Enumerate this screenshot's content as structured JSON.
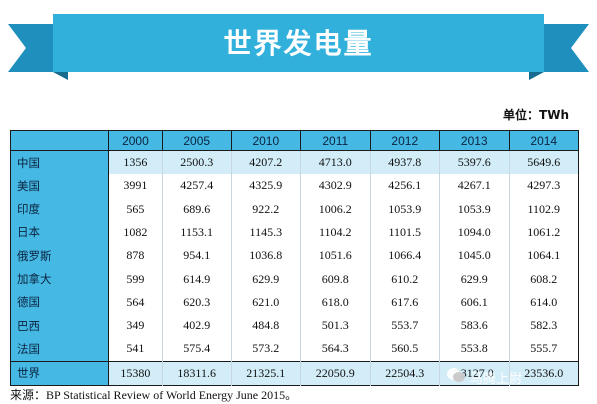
{
  "title": "世界发电量",
  "unit": "单位：TWh",
  "source": "来源：BP Statistical Review of World Energy June 2015。",
  "watermark": "马腾上尉",
  "colors": {
    "header": "#46b8e4",
    "ribbon": "#31b0dc",
    "highlight": "#d2edf8"
  },
  "chart_data": {
    "type": "table",
    "title": "世界发电量",
    "unit": "TWh",
    "columns": [
      "2000",
      "2005",
      "2010",
      "2011",
      "2012",
      "2013",
      "2014"
    ],
    "rows": [
      {
        "name": "中国",
        "values": [
          "1356",
          "2500.3",
          "4207.2",
          "4713.0",
          "4937.8",
          "5397.6",
          "5649.6"
        ]
      },
      {
        "name": "美国",
        "values": [
          "3991",
          "4257.4",
          "4325.9",
          "4302.9",
          "4256.1",
          "4267.1",
          "4297.3"
        ]
      },
      {
        "name": "印度",
        "values": [
          "565",
          "689.6",
          "922.2",
          "1006.2",
          "1053.9",
          "1053.9",
          "1102.9"
        ]
      },
      {
        "name": "日本",
        "values": [
          "1082",
          "1153.1",
          "1145.3",
          "1104.2",
          "1101.5",
          "1094.0",
          "1061.2"
        ]
      },
      {
        "name": "俄罗斯",
        "values": [
          "878",
          "954.1",
          "1036.8",
          "1051.6",
          "1066.4",
          "1045.0",
          "1064.1"
        ]
      },
      {
        "name": "加拿大",
        "values": [
          "599",
          "614.9",
          "629.9",
          "609.8",
          "610.2",
          "629.9",
          "608.2"
        ]
      },
      {
        "name": "德国",
        "values": [
          "564",
          "620.3",
          "621.0",
          "618.0",
          "617.6",
          "606.1",
          "614.0"
        ]
      },
      {
        "name": "巴西",
        "values": [
          "349",
          "402.9",
          "484.8",
          "501.3",
          "553.7",
          "583.6",
          "582.3"
        ]
      },
      {
        "name": "法国",
        "values": [
          "541",
          "575.4",
          "573.2",
          "564.3",
          "560.5",
          "553.8",
          "555.7"
        ]
      },
      {
        "name": "世界",
        "values": [
          "15380",
          "18311.6",
          "21325.1",
          "22050.9",
          "22504.3",
          "23127.0",
          "23536.0"
        ]
      }
    ]
  }
}
